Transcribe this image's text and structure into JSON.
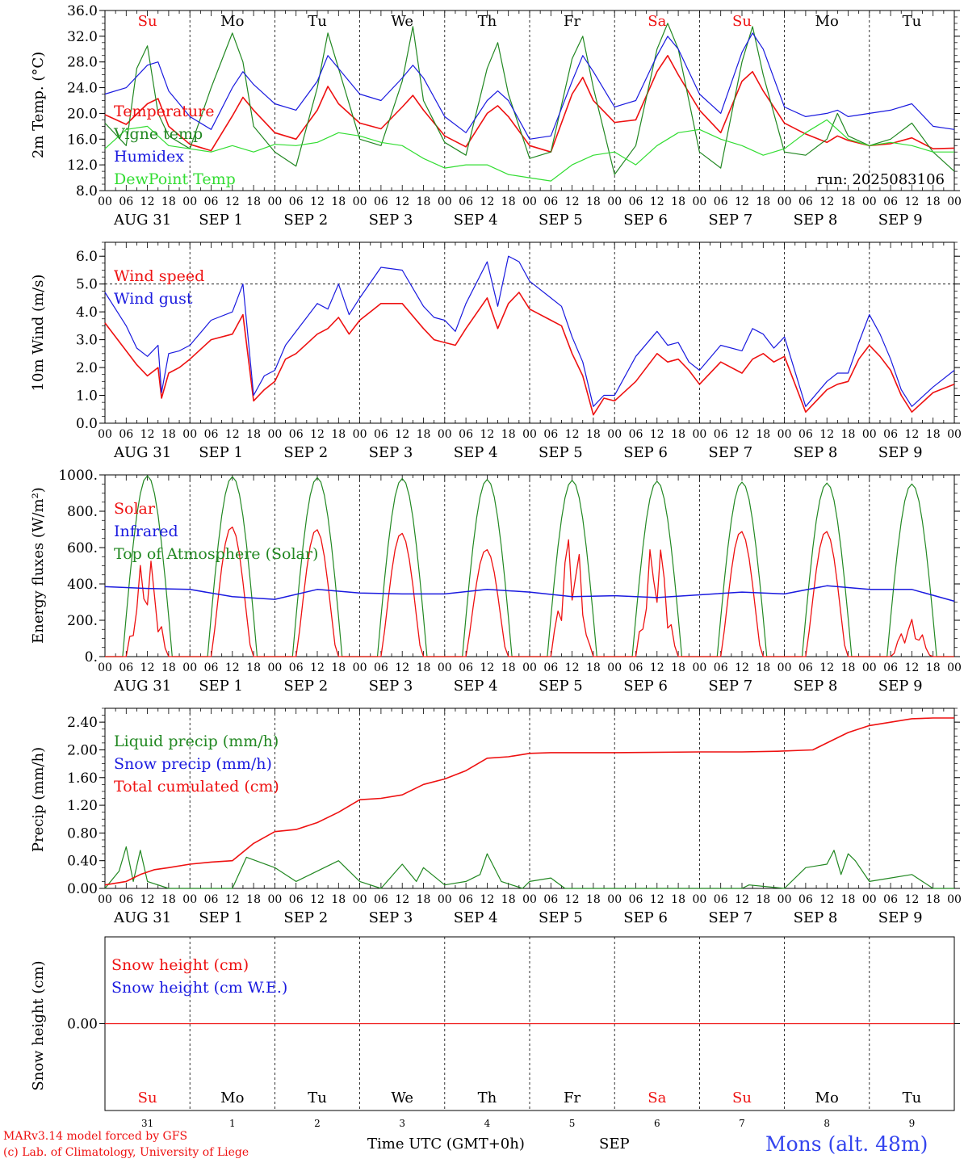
{
  "colors": {
    "red": "#ee1111",
    "green": "#228822",
    "blue": "#1a1adf",
    "lightgreen": "#33dd33",
    "black": "#000000",
    "location": "#3344ee"
  },
  "days": [
    {
      "abbr": "Su",
      "weekend": true,
      "date": "AUG 31",
      "num": "31"
    },
    {
      "abbr": "Mo",
      "weekend": false,
      "date": "SEP  1",
      "num": "1"
    },
    {
      "abbr": "Tu",
      "weekend": false,
      "date": "SEP  2",
      "num": "2"
    },
    {
      "abbr": "We",
      "weekend": false,
      "date": "SEP  3",
      "num": "3"
    },
    {
      "abbr": "Th",
      "weekend": false,
      "date": "SEP  4",
      "num": "4"
    },
    {
      "abbr": "Fr",
      "weekend": false,
      "date": "SEP  5",
      "num": "5"
    },
    {
      "abbr": "Sa",
      "weekend": true,
      "date": "SEP  6",
      "num": "6"
    },
    {
      "abbr": "Su",
      "weekend": true,
      "date": "SEP  7",
      "num": "7"
    },
    {
      "abbr": "Mo",
      "weekend": false,
      "date": "SEP  8",
      "num": "8"
    },
    {
      "abbr": "Tu",
      "weekend": false,
      "date": "SEP  9",
      "num": "9"
    }
  ],
  "hour_ticks": [
    "00",
    "06",
    "12",
    "18"
  ],
  "end_tick": "00",
  "footer": {
    "model": "MARv3.14 model forced by GFS",
    "copyright": "(c) Lab. of Climatology, University of Liege",
    "time_label": "Time UTC (GMT+0h)",
    "month": "SEP",
    "location": "Mons (alt. 48m)"
  },
  "chart_data": [
    {
      "type": "line",
      "ylabel": "2m Temp. (°C)",
      "ylim": [
        8,
        36
      ],
      "yticks": [
        "8.0",
        "12.0",
        "16.0",
        "20.0",
        "24.0",
        "28.0",
        "32.0",
        "36.0"
      ],
      "annotation": "run: 2025083106",
      "x_unit": "hours since AUG 31 00 UTC",
      "series": [
        {
          "name": "Temperature",
          "color": "red",
          "x": [
            0,
            6,
            12,
            15,
            18,
            24,
            30,
            36,
            39,
            42,
            48,
            54,
            60,
            63,
            66,
            72,
            78,
            84,
            87,
            90,
            96,
            102,
            108,
            111,
            114,
            120,
            126,
            132,
            135,
            138,
            144,
            150,
            156,
            159,
            162,
            168,
            174,
            180,
            183,
            186,
            192,
            198,
            204,
            207,
            210,
            216,
            222,
            228,
            234,
            240
          ],
          "y": [
            19.8,
            18.3,
            21.5,
            22.3,
            18.0,
            15.2,
            14.2,
            19.6,
            22.5,
            20.5,
            17.0,
            16.0,
            20.5,
            24.2,
            21.5,
            18.5,
            17.6,
            21.0,
            22.8,
            20.5,
            16.5,
            14.8,
            20.0,
            21.2,
            19.5,
            15.0,
            14.0,
            23.0,
            25.6,
            22.0,
            18.6,
            19.0,
            26.5,
            29.0,
            26.0,
            20.5,
            17.0,
            25.0,
            26.5,
            23.5,
            18.5,
            16.8,
            15.5,
            16.5,
            15.8,
            15.0,
            15.3,
            16.2,
            14.5,
            14.6
          ]
        },
        {
          "name": "Vigne temp",
          "color": "green",
          "x": [
            0,
            6,
            9,
            12,
            15,
            18,
            24,
            30,
            36,
            39,
            42,
            48,
            54,
            60,
            63,
            66,
            72,
            78,
            84,
            87,
            90,
            96,
            102,
            108,
            111,
            114,
            120,
            126,
            132,
            135,
            138,
            144,
            150,
            156,
            159,
            162,
            168,
            174,
            180,
            183,
            186,
            192,
            198,
            204,
            207,
            210,
            216,
            222,
            228,
            234,
            240
          ],
          "y": [
            18.5,
            15.0,
            27.0,
            30.5,
            20.0,
            16.5,
            14.5,
            24.0,
            32.5,
            28.0,
            18.0,
            14.0,
            11.8,
            24.0,
            32.5,
            27.0,
            16.0,
            15.0,
            25.0,
            33.5,
            22.0,
            15.5,
            13.5,
            27.0,
            31.0,
            23.0,
            13.0,
            14.0,
            28.5,
            32.0,
            24.0,
            10.5,
            15.0,
            30.0,
            34.0,
            30.0,
            14.0,
            11.5,
            28.0,
            33.5,
            26.0,
            14.0,
            13.5,
            16.0,
            20.0,
            16.5,
            15.0,
            16.0,
            18.5,
            14.0,
            11.0
          ]
        },
        {
          "name": "Humidex",
          "color": "blue",
          "x": [
            0,
            6,
            12,
            15,
            18,
            24,
            30,
            36,
            39,
            42,
            48,
            54,
            60,
            63,
            66,
            72,
            78,
            84,
            87,
            90,
            96,
            102,
            108,
            111,
            114,
            120,
            126,
            132,
            135,
            138,
            144,
            150,
            156,
            159,
            162,
            168,
            174,
            180,
            183,
            186,
            192,
            198,
            204,
            207,
            210,
            216,
            222,
            228,
            234,
            240
          ],
          "y": [
            23.0,
            24.0,
            27.5,
            28.0,
            23.5,
            19.5,
            17.5,
            24.0,
            26.5,
            24.5,
            21.5,
            20.5,
            25.0,
            29.0,
            27.0,
            23.0,
            22.0,
            25.5,
            27.5,
            25.5,
            19.5,
            17.0,
            22.0,
            23.5,
            22.0,
            16.0,
            16.5,
            25.0,
            29.0,
            26.5,
            21.0,
            22.0,
            29.0,
            32.0,
            30.0,
            23.0,
            20.0,
            29.5,
            32.5,
            30.0,
            21.0,
            19.5,
            20.0,
            20.5,
            19.5,
            20.0,
            20.5,
            21.5,
            18.0,
            17.5
          ]
        },
        {
          "name": "DewPoint Temp",
          "color": "lightgreen",
          "x": [
            0,
            6,
            12,
            18,
            24,
            30,
            36,
            42,
            48,
            54,
            60,
            66,
            72,
            78,
            84,
            90,
            96,
            102,
            108,
            114,
            120,
            126,
            132,
            138,
            144,
            150,
            156,
            162,
            168,
            174,
            180,
            186,
            192,
            198,
            204,
            210,
            216,
            222,
            228,
            234,
            240
          ],
          "y": [
            14.5,
            17.5,
            18.0,
            15.0,
            14.5,
            14.0,
            15.0,
            14.0,
            15.2,
            15.0,
            15.5,
            17.0,
            16.5,
            15.5,
            15.0,
            13.0,
            11.5,
            12.0,
            12.0,
            10.5,
            10.0,
            9.5,
            12.0,
            13.5,
            14.0,
            12.0,
            15.0,
            17.0,
            17.5,
            16.0,
            15.0,
            13.5,
            14.5,
            17.0,
            19.0,
            16.0,
            15.0,
            15.5,
            15.0,
            14.0,
            14.0
          ]
        }
      ]
    },
    {
      "type": "line",
      "ylabel": "10m Wind (m/s)",
      "ylim": [
        0,
        6.5
      ],
      "yticks": [
        "0.0",
        "1.0",
        "2.0",
        "3.0",
        "4.0",
        "5.0",
        "6.0"
      ],
      "hline": 5.0,
      "x_unit": "hours since AUG 31 00 UTC",
      "series": [
        {
          "name": "Wind speed",
          "color": "red",
          "x": [
            0,
            6,
            9,
            12,
            15,
            16,
            18,
            21,
            24,
            30,
            36,
            39,
            42,
            45,
            48,
            51,
            54,
            60,
            63,
            66,
            69,
            72,
            78,
            84,
            90,
            93,
            96,
            99,
            102,
            108,
            111,
            114,
            117,
            120,
            126,
            129,
            132,
            135,
            138,
            141,
            144,
            150,
            156,
            159,
            162,
            165,
            168,
            174,
            180,
            183,
            186,
            189,
            192,
            198,
            204,
            207,
            210,
            213,
            216,
            219,
            222,
            225,
            228,
            234,
            240
          ],
          "y": [
            3.6,
            2.6,
            2.1,
            1.7,
            2.0,
            0.9,
            1.8,
            2.0,
            2.3,
            3.0,
            3.2,
            3.9,
            0.8,
            1.2,
            1.5,
            2.3,
            2.5,
            3.2,
            3.4,
            3.8,
            3.2,
            3.7,
            4.3,
            4.3,
            3.4,
            3.0,
            2.9,
            2.8,
            3.4,
            4.5,
            3.4,
            4.3,
            4.7,
            4.1,
            3.7,
            3.5,
            2.5,
            1.7,
            0.3,
            0.9,
            0.8,
            1.5,
            2.5,
            2.2,
            2.3,
            1.9,
            1.4,
            2.2,
            1.8,
            2.3,
            2.5,
            2.2,
            2.4,
            0.4,
            1.2,
            1.4,
            1.5,
            2.3,
            2.8,
            2.4,
            1.9,
            1.0,
            0.4,
            1.1,
            1.4
          ]
        },
        {
          "name": "Wind gust",
          "color": "blue",
          "x": [
            0,
            6,
            9,
            12,
            15,
            16,
            18,
            21,
            24,
            30,
            36,
            39,
            42,
            45,
            48,
            51,
            54,
            60,
            63,
            66,
            69,
            72,
            78,
            84,
            90,
            93,
            96,
            99,
            102,
            108,
            111,
            114,
            117,
            120,
            126,
            129,
            132,
            135,
            138,
            141,
            144,
            150,
            156,
            159,
            162,
            165,
            168,
            174,
            180,
            183,
            186,
            189,
            192,
            198,
            204,
            207,
            210,
            213,
            216,
            219,
            222,
            225,
            228,
            234,
            240
          ],
          "y": [
            4.7,
            3.5,
            2.7,
            2.4,
            2.8,
            1.1,
            2.5,
            2.6,
            2.8,
            3.7,
            4.0,
            5.0,
            1.0,
            1.7,
            1.9,
            2.8,
            3.3,
            4.3,
            4.1,
            5.0,
            3.9,
            4.5,
            5.6,
            5.5,
            4.2,
            3.8,
            3.7,
            3.3,
            4.3,
            5.8,
            4.2,
            6.0,
            5.8,
            5.1,
            4.5,
            4.2,
            3.1,
            2.2,
            0.6,
            1.0,
            1.0,
            2.4,
            3.3,
            2.8,
            2.9,
            2.2,
            1.9,
            2.8,
            2.6,
            3.4,
            3.2,
            2.7,
            3.1,
            0.6,
            1.5,
            1.8,
            1.8,
            2.9,
            3.9,
            3.2,
            2.3,
            1.2,
            0.6,
            1.3,
            1.9
          ]
        }
      ]
    },
    {
      "type": "line",
      "ylabel": "Energy fluxes (W/m²)",
      "ylim": [
        0,
        1000
      ],
      "yticks": [
        "0.",
        "200.",
        "400.",
        "600.",
        "800.",
        "1000."
      ],
      "x_unit": "hours since AUG 31 00 UTC",
      "toa_daily_peak": [
        995,
        990,
        985,
        980,
        975,
        970,
        965,
        960,
        955,
        950
      ],
      "solar_daily_peak": [
        580,
        715,
        700,
        680,
        590,
        720,
        680,
        690,
        690,
        210
      ],
      "series": [
        {
          "name": "Solar",
          "color": "red"
        },
        {
          "name": "Infrared",
          "color": "blue",
          "x": [
            0,
            12,
            24,
            36,
            48,
            60,
            72,
            84,
            96,
            108,
            120,
            132,
            144,
            156,
            168,
            180,
            192,
            204,
            216,
            228,
            240
          ],
          "y": [
            385,
            375,
            370,
            330,
            315,
            370,
            350,
            345,
            345,
            370,
            355,
            330,
            335,
            325,
            340,
            355,
            345,
            390,
            370,
            370,
            305
          ]
        },
        {
          "name": "Top of Atmosphere (Solar)",
          "color": "green"
        }
      ]
    },
    {
      "type": "line",
      "ylabel": "Precip (mm/h)",
      "ylim": [
        0,
        2.6
      ],
      "yticks": [
        "0.00",
        "0.40",
        "0.80",
        "1.20",
        "1.60",
        "2.00",
        "2.40"
      ],
      "x_unit": "hours since AUG 31 00 UTC",
      "series": [
        {
          "name": "Liquid precip (mm/h)",
          "color": "green",
          "x": [
            0,
            4,
            6,
            8,
            10,
            12,
            18,
            24,
            36,
            40,
            48,
            54,
            60,
            66,
            72,
            78,
            84,
            88,
            90,
            96,
            102,
            106,
            108,
            112,
            118,
            120,
            126,
            130,
            132,
            168,
            180,
            182,
            192,
            198,
            204,
            206,
            208,
            210,
            212,
            216,
            222,
            228,
            234,
            240
          ],
          "y": [
            0,
            0.25,
            0.6,
            0.1,
            0.55,
            0.1,
            0,
            0,
            0,
            0.45,
            0.3,
            0.1,
            0.25,
            0.4,
            0.1,
            0,
            0.35,
            0.1,
            0.3,
            0.05,
            0.1,
            0.2,
            0.5,
            0.1,
            0,
            0.1,
            0.15,
            0,
            0,
            0,
            0,
            0.05,
            0,
            0.3,
            0.35,
            0.55,
            0.2,
            0.5,
            0.4,
            0.1,
            0.15,
            0.2,
            0,
            0
          ]
        },
        {
          "name": "Snow precip (mm/h)",
          "color": "blue"
        },
        {
          "name": "Total cumulated (cm)",
          "color": "red",
          "x": [
            0,
            6,
            10,
            14,
            18,
            24,
            30,
            36,
            42,
            48,
            54,
            60,
            66,
            72,
            78,
            84,
            90,
            96,
            102,
            108,
            114,
            120,
            126,
            132,
            138,
            144,
            168,
            180,
            190,
            200,
            204,
            210,
            216,
            222,
            228,
            234,
            240
          ],
          "y": [
            0.05,
            0.1,
            0.2,
            0.27,
            0.3,
            0.35,
            0.38,
            0.4,
            0.65,
            0.82,
            0.85,
            0.95,
            1.1,
            1.28,
            1.3,
            1.35,
            1.5,
            1.58,
            1.7,
            1.88,
            1.9,
            1.95,
            1.96,
            1.96,
            1.96,
            1.96,
            1.97,
            1.97,
            1.98,
            2.0,
            2.1,
            2.25,
            2.35,
            2.4,
            2.45,
            2.46,
            2.46
          ]
        }
      ]
    },
    {
      "type": "line",
      "ylabel": "Snow height (cm)",
      "ylim": [
        -1,
        1
      ],
      "yticks": [
        "0.00"
      ],
      "x_unit": "hours since AUG 31 00 UTC",
      "series": [
        {
          "name": "Snow height (cm)",
          "color": "red",
          "x": [
            0,
            240
          ],
          "y": [
            0,
            0
          ]
        },
        {
          "name": "Snow height (cm W.E.)",
          "color": "blue"
        }
      ]
    }
  ]
}
